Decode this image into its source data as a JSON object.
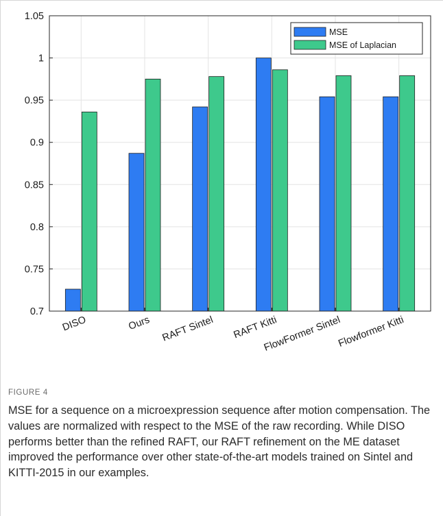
{
  "chart_data": {
    "type": "bar",
    "categories": [
      "DISO",
      "Ours",
      "RAFT Sintel",
      "RAFT Kitti",
      "FlowFormer Sintel",
      "Flowformer Kitti"
    ],
    "series": [
      {
        "name": "MSE",
        "color": "#2e7cf2",
        "values": [
          0.726,
          0.887,
          0.942,
          1.0,
          0.954,
          0.954
        ]
      },
      {
        "name": "MSE of Laplacian",
        "color": "#3ec98c",
        "values": [
          0.936,
          0.975,
          0.978,
          0.986,
          0.979,
          0.979
        ]
      }
    ],
    "ylim": [
      0.7,
      1.05
    ],
    "yticks": [
      "0.7",
      "0.75",
      "0.8",
      "0.85",
      "0.9",
      "0.95",
      "1",
      "1.05"
    ],
    "grid": true,
    "legend": "top-right"
  },
  "figure": {
    "label": "FIGURE 4",
    "caption": "MSE for a sequence on a microexpression sequence after motion compensation. The values are normalized with respect to the MSE of the raw recording. While DISO performs better than the refined RAFT, our RAFT refinement on the ME dataset improved the performance over other state-of-the-art models trained on Sintel and KITTI-2015 in our examples."
  }
}
